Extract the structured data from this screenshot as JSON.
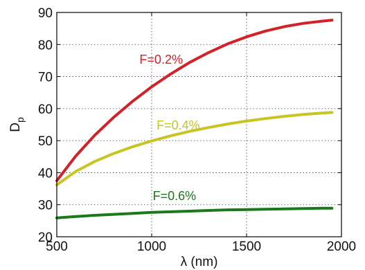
{
  "chart_data": {
    "type": "line",
    "xlabel": "λ (nm)",
    "ylabel": "D",
    "ylabel_subscript": "p",
    "xlim": [
      500,
      2000
    ],
    "ylim": [
      20,
      90
    ],
    "xticks": [
      500,
      1000,
      1500,
      2000
    ],
    "yticks": [
      20,
      30,
      40,
      50,
      60,
      70,
      80,
      90
    ],
    "grid": true,
    "series": [
      {
        "name": "F=0.2%",
        "color": "#d42027",
        "x": [
          500,
          600,
          700,
          800,
          900,
          1000,
          1100,
          1200,
          1300,
          1400,
          1500,
          1600,
          1700,
          1800,
          1900,
          1950
        ],
        "y": [
          37.5,
          45.2,
          51.7,
          57.3,
          62.3,
          66.8,
          70.8,
          74.4,
          77.5,
          80.2,
          82.4,
          84.2,
          85.6,
          86.6,
          87.3,
          87.6
        ]
      },
      {
        "name": "F=0.4%",
        "color": "#c8c420",
        "x": [
          500,
          600,
          700,
          800,
          900,
          1000,
          1100,
          1200,
          1300,
          1400,
          1500,
          1600,
          1700,
          1800,
          1900,
          1950
        ],
        "y": [
          36.2,
          40.4,
          43.5,
          46.0,
          48.1,
          49.9,
          51.5,
          52.9,
          54.1,
          55.2,
          56.1,
          56.9,
          57.6,
          58.2,
          58.6,
          58.8
        ]
      },
      {
        "name": "F=0.6%",
        "color": "#1a7a1a",
        "x": [
          500,
          600,
          700,
          800,
          900,
          1000,
          1100,
          1200,
          1300,
          1400,
          1500,
          1600,
          1700,
          1800,
          1900,
          1950
        ],
        "y": [
          25.9,
          26.3,
          26.7,
          27.0,
          27.3,
          27.6,
          27.8,
          28.0,
          28.2,
          28.4,
          28.5,
          28.6,
          28.7,
          28.8,
          28.9,
          28.9
        ]
      }
    ],
    "annotations": [
      {
        "text": "F=0.2%",
        "x": 1050,
        "y": 74
      },
      {
        "text": "F=0.4%",
        "x": 1140,
        "y": 53.5
      },
      {
        "text": "F=0.6%",
        "x": 1120,
        "y": 31.5
      }
    ]
  }
}
